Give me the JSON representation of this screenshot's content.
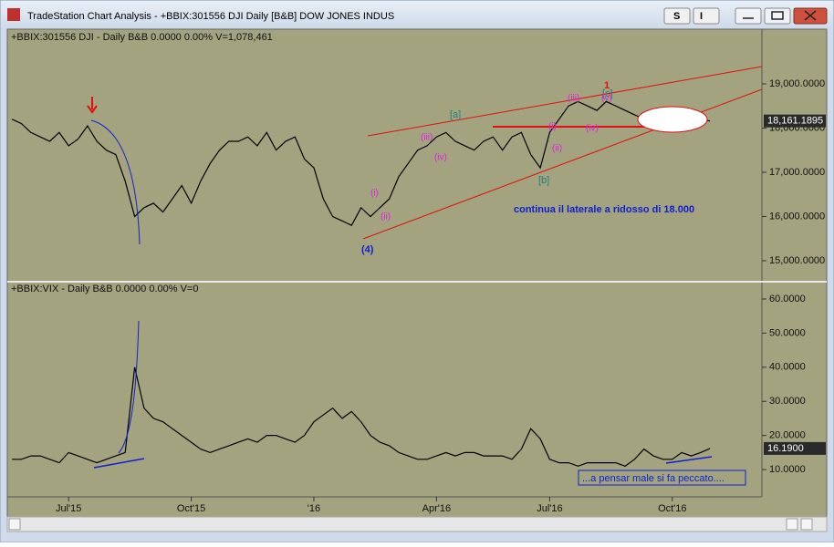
{
  "window": {
    "title": "TradeStation Chart Analysis - +BBIX:301556 DJI Daily [B&B] DOW JONES INDUS",
    "buttons": [
      "S",
      "I"
    ]
  },
  "chart_data": [
    {
      "type": "line",
      "header": "+BBIX:301556 DJI - Daily  B&B  0.0000  0.00%  V=1,078,461",
      "color": "#000000",
      "categories": [
        null,
        null,
        null,
        null,
        null,
        null,
        "Jul'15",
        null,
        null,
        null,
        null,
        null,
        null,
        null,
        null,
        null,
        null,
        null,
        null,
        "Oct'15",
        null,
        null,
        null,
        null,
        null,
        null,
        null,
        null,
        null,
        null,
        null,
        null,
        "'16",
        null,
        null,
        null,
        null,
        null,
        null,
        null,
        null,
        null,
        null,
        null,
        null,
        "Apr'16",
        null,
        null,
        null,
        null,
        null,
        null,
        null,
        null,
        null,
        null,
        null,
        "Jul'16",
        null,
        null,
        null,
        null,
        null,
        null,
        null,
        null,
        null,
        null,
        null,
        null,
        "Oct'16",
        null,
        null,
        null,
        null
      ],
      "values": [
        18200,
        18100,
        17900,
        17800,
        17700,
        17900,
        17600,
        17750,
        18050,
        17700,
        17500,
        17400,
        16800,
        16000,
        16200,
        16300,
        16100,
        16400,
        16700,
        16300,
        16800,
        17200,
        17500,
        17700,
        17700,
        17800,
        17600,
        17900,
        17500,
        17700,
        17800,
        17300,
        17100,
        16400,
        16000,
        15900,
        15800,
        16200,
        16000,
        16200,
        16400,
        16900,
        17200,
        17500,
        17600,
        17800,
        17900,
        17700,
        17600,
        17500,
        17700,
        17800,
        17500,
        17800,
        17900,
        17400,
        17100,
        17900,
        18200,
        18500,
        18600,
        18500,
        18400,
        18600,
        18500,
        18400,
        18300,
        18200,
        18300,
        18200,
        18300,
        18200,
        18100,
        18200,
        18161.1895
      ],
      "last_label": "18,161.1895",
      "ylim": [
        14546,
        20216
      ],
      "yticks": [
        {
          "value": 15000,
          "label": "15,000.0000"
        },
        {
          "value": 16000,
          "label": "16,000.0000"
        },
        {
          "value": 17000,
          "label": "17,000.0000"
        },
        {
          "value": 18000,
          "label": "18,000.0000"
        },
        {
          "value": 19000,
          "label": "19,000.0000"
        }
      ],
      "annotations": [
        "1",
        "[c]",
        "[a]",
        "[b]",
        "(4)",
        "(i)",
        "(ii)",
        "(iii)",
        "(iv)",
        "(i)",
        "(ii)",
        "(iii)",
        "(iv)",
        "(v)",
        "continua il laterale a ridosso  di 18.000"
      ]
    },
    {
      "type": "line",
      "header": "+BBIX:VIX - Daily  B&B  0.0000  0.00%  V=0",
      "color": "#000000",
      "values": [
        13,
        13,
        14,
        14,
        13,
        12,
        15,
        14,
        13,
        12,
        13,
        14,
        15,
        40,
        28,
        25,
        24,
        22,
        20,
        18,
        16,
        15,
        16,
        17,
        18,
        19,
        18,
        20,
        20,
        19,
        18,
        20,
        24,
        26,
        28,
        25,
        27,
        24,
        20,
        18,
        17,
        15,
        14,
        13,
        13,
        14,
        15,
        14,
        15,
        15,
        14,
        14,
        14,
        13,
        16,
        22,
        19,
        13,
        12,
        12,
        11,
        12,
        12,
        12,
        12,
        11,
        13,
        16,
        14,
        13,
        13,
        15,
        14,
        15,
        16.19
      ],
      "last_label": "16.1900",
      "ylim": [
        2,
        64.8
      ],
      "yticks": [
        {
          "value": 10,
          "label": "10.0000"
        },
        {
          "value": 20,
          "label": "20.0000"
        },
        {
          "value": 30,
          "label": "30.0000"
        },
        {
          "value": 40,
          "label": "40.0000"
        },
        {
          "value": 50,
          "label": "50.0000"
        },
        {
          "value": 60,
          "label": "60.0000"
        }
      ],
      "annotations": [
        "...a pensar male si fa peccato...."
      ]
    }
  ]
}
